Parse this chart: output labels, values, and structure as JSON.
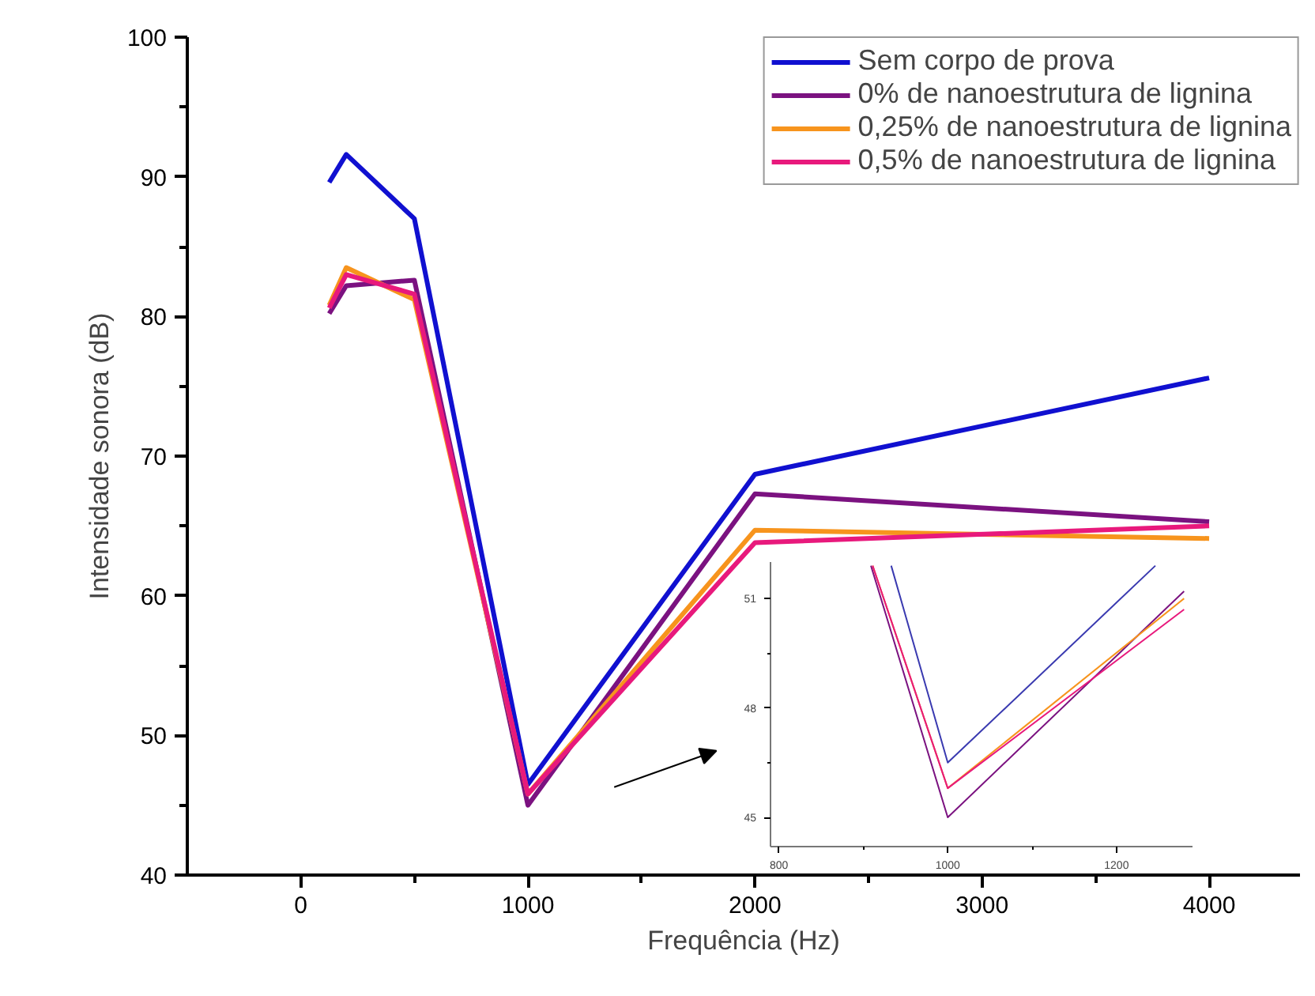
{
  "chart_data": [
    {
      "type": "line",
      "xlabel": "Frequência (Hz)",
      "ylabel": "Intensidade sonora (dB)",
      "x": [
        125,
        200,
        500,
        1000,
        2000,
        4000
      ],
      "series": [
        {
          "name": "Sem corpo de prova",
          "color": "#1010d0",
          "values": [
            89.6,
            91.6,
            87.0,
            46.5,
            68.7,
            75.6
          ]
        },
        {
          "name": "0% de nanoestrutura de lignina",
          "color": "#7b1280",
          "values": [
            80.2,
            82.2,
            82.6,
            45.0,
            67.3,
            65.3
          ]
        },
        {
          "name": "0,25% de nanoestrutura de lignina",
          "color": "#f7941d",
          "values": [
            80.8,
            83.5,
            81.2,
            45.8,
            64.7,
            64.1
          ]
        },
        {
          "name": "0,5% de nanoestrutura de lignina",
          "color": "#e8197c",
          "values": [
            80.6,
            83.0,
            81.6,
            45.8,
            63.8,
            65.0
          ]
        }
      ],
      "xlim": [
        -500,
        4400
      ],
      "ylim": [
        40,
        100
      ],
      "xticks": [
        0,
        1000,
        2000,
        3000,
        4000
      ],
      "yticks": [
        40,
        50,
        60,
        70,
        80,
        90,
        100
      ],
      "grid": false,
      "legend": "top right",
      "line_style": "solid"
    },
    {
      "type": "line",
      "series": [
        {
          "color": "#3a3ab0",
          "x": [
            933,
            1000,
            1246
          ],
          "values": [
            51.9,
            46.5,
            51.9
          ]
        },
        {
          "color": "#7b1280",
          "x": [
            909,
            1000,
            1280
          ],
          "values": [
            51.9,
            45.0,
            51.2
          ]
        },
        {
          "color": "#f7941d",
          "x": [
            911,
            1000,
            1280
          ],
          "values": [
            51.9,
            45.8,
            51.0
          ]
        },
        {
          "color": "#e8197c",
          "x": [
            911,
            1000,
            1280
          ],
          "values": [
            51.9,
            45.8,
            50.7
          ]
        }
      ],
      "xlim": [
        790,
        1290
      ],
      "ylim": [
        44.2,
        52
      ],
      "xticks": [
        800,
        1000,
        1200
      ],
      "yticks": [
        45,
        48,
        51
      ],
      "grid": false,
      "legend": false,
      "line_style": "solid"
    }
  ]
}
